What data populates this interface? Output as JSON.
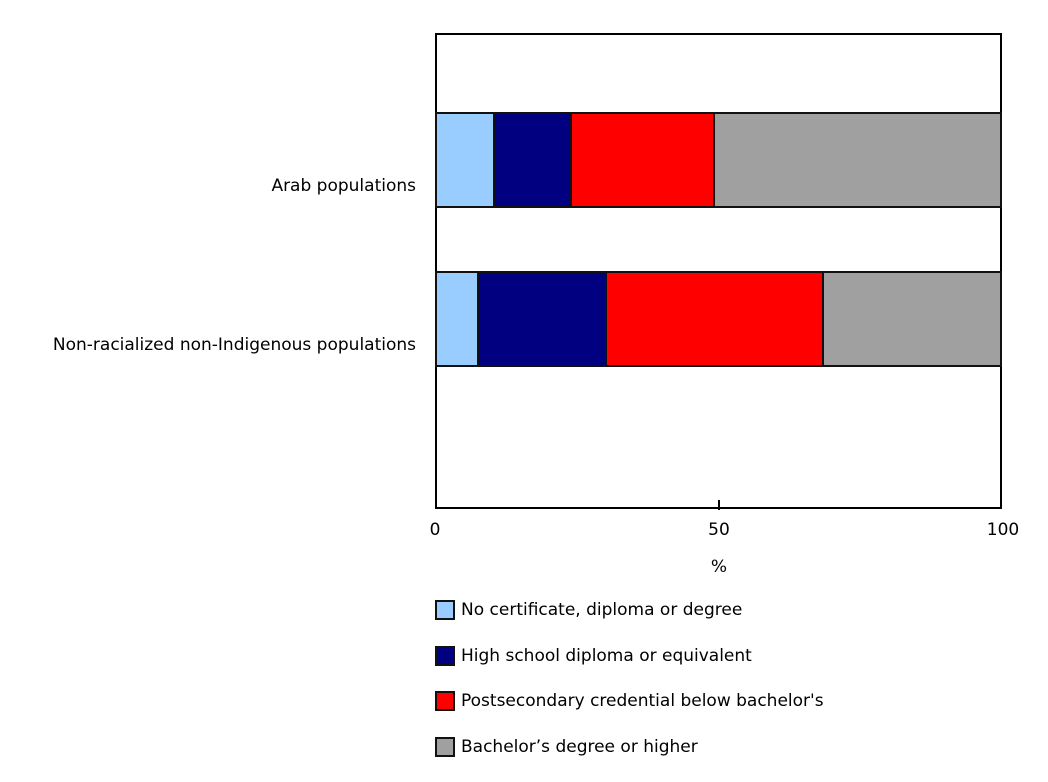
{
  "chart_data": {
    "type": "bar",
    "orientation": "horizontal",
    "stacked": true,
    "title": "",
    "xlabel": "%",
    "ylabel": "",
    "xlim": [
      0,
      100
    ],
    "xticks": [
      0,
      50,
      100
    ],
    "grid": false,
    "legend_position": "bottom",
    "categories": [
      "Arab populations",
      "Non-racialized non-Indigenous populations"
    ],
    "series": [
      {
        "name": "No certificate, diploma or degree",
        "color": "#99ccff",
        "values": [
          10.5,
          7.8
        ]
      },
      {
        "name": "High school diploma or equivalent",
        "color": "#000080",
        "values": [
          13.7,
          22.5
        ]
      },
      {
        "name": "Postsecondary credential below bachelor's",
        "color": "#ff0000",
        "values": [
          25.1,
          38.3
        ]
      },
      {
        "name": "Bachelor’s degree or higher",
        "color": "#a0a0a0",
        "values": [
          50.7,
          31.4
        ]
      }
    ]
  },
  "axis": {
    "tick_labels": [
      "0",
      "50",
      "100"
    ],
    "title": "%"
  },
  "categories": [
    {
      "label": "Arab populations"
    },
    {
      "label": "Non-racialized non-Indigenous populations"
    }
  ],
  "legend": [
    {
      "label": "No certificate, diploma or degree",
      "color": "#99ccff"
    },
    {
      "label": "High school diploma or equivalent",
      "color": "#000080"
    },
    {
      "label": "Postsecondary credential below bachelor's",
      "color": "#ff0000"
    },
    {
      "label": "Bachelor’s degree or higher",
      "color": "#a0a0a0"
    }
  ]
}
